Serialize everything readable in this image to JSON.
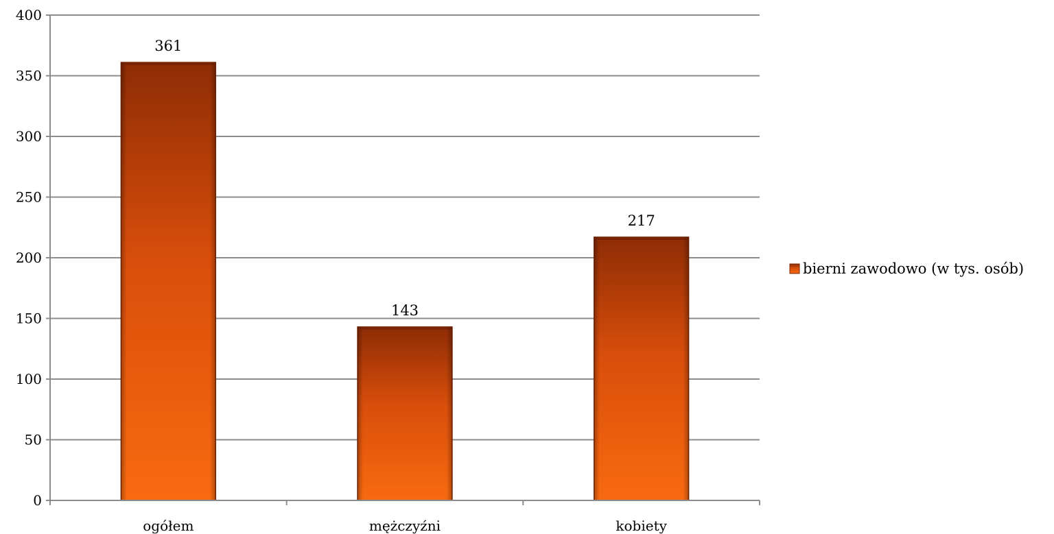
{
  "chart_data": {
    "type": "bar",
    "categories": [
      "ogółem",
      "mężczyźni",
      "kobiety"
    ],
    "series": [
      {
        "name": "bierni zawodowo (w tys. osób)",
        "values": [
          361,
          143,
          217
        ]
      }
    ],
    "data_labels": [
      "361",
      "143",
      "217"
    ],
    "ylim": [
      0,
      400
    ],
    "yticks": [
      0,
      50,
      100,
      150,
      200,
      250,
      300,
      350,
      400
    ],
    "ytick_labels": [
      "0",
      "50",
      "100",
      "150",
      "200",
      "250",
      "300",
      "350",
      "400"
    ],
    "grid": true,
    "legend_position": "right",
    "colors": {
      "bar_top": "#8e2c05",
      "bar_mid": "#d94e0b",
      "bar_bottom": "#f86a10",
      "bar_edge": "#7a2604",
      "grid": "#8c8c8c",
      "axis": "#8c8c8c"
    }
  }
}
